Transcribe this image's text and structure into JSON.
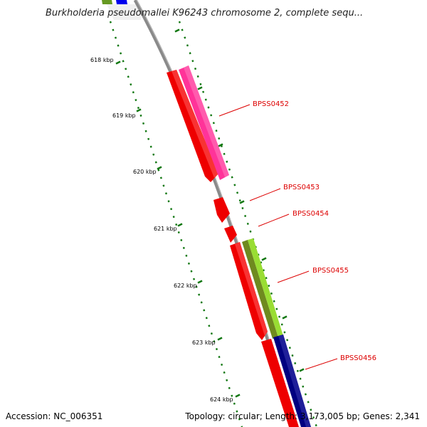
{
  "title": "Burkholderia pseudomallei K96243 chromosome 2, complete sequ...",
  "footer": {
    "accession": "Accession: NC_006351",
    "summary": "Topology: circular; Length: 3,173,005 bp; Genes: 2,341"
  },
  "ticks": [
    {
      "label": "618 kbp"
    },
    {
      "label": "619 kbp"
    },
    {
      "label": "620 kbp"
    },
    {
      "label": "621 kbp"
    },
    {
      "label": "622 kbp"
    },
    {
      "label": "623 kbp"
    },
    {
      "label": "624 kbp"
    }
  ],
  "genes": [
    {
      "label": "BPSS0452"
    },
    {
      "label": "BPSS0453"
    },
    {
      "label": "BPSS0454"
    },
    {
      "label": "BPSS0455"
    },
    {
      "label": "BPSS0456"
    }
  ],
  "colors": {
    "backbone": "#8a8a8a",
    "gene": "#ee0000",
    "pink_feature": "#ff3399",
    "lime_feature": "#99dd33",
    "navy_feature": "#000080",
    "top_blue": "#0000ee",
    "top_green": "#669922",
    "tick_green": "#117711",
    "label_red": "#dd0000"
  }
}
